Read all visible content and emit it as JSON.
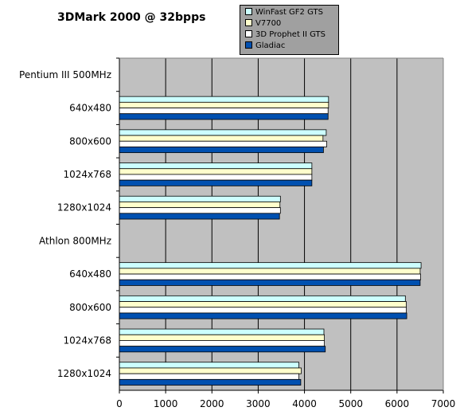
{
  "chart_data": {
    "type": "bar",
    "orientation": "horizontal",
    "title": "3DMark 2000 @ 32bpps",
    "categories": [
      "Pentium III 500MHz",
      "640x480",
      "800x600",
      "1024x768",
      "1280x1024",
      "Athlon 800MHz",
      "640x480",
      "800x600",
      "1024x768",
      "1280x1024"
    ],
    "series": [
      {
        "name": "WinFast GF2 GTS",
        "color": "#ccffff",
        "values": [
          null,
          4520,
          4470,
          4160,
          3480,
          null,
          6520,
          6180,
          4420,
          3880
        ]
      },
      {
        "name": "V7700",
        "color": "#ffffcc",
        "values": [
          null,
          4520,
          4400,
          4160,
          3470,
          null,
          6500,
          6200,
          4430,
          3930
        ]
      },
      {
        "name": "3D Prophet II GTS",
        "color": "#ffffff",
        "values": [
          null,
          4510,
          4480,
          4160,
          3480,
          null,
          6510,
          6200,
          4430,
          3880
        ]
      },
      {
        "name": "Gladiac",
        "color": "#0050b0",
        "values": [
          null,
          4510,
          4410,
          4160,
          3460,
          null,
          6500,
          6210,
          4450,
          3920
        ]
      }
    ],
    "xlim": [
      0,
      7000
    ],
    "xticks": [
      0,
      1000,
      2000,
      3000,
      4000,
      5000,
      6000,
      7000
    ],
    "xlabel": "",
    "ylabel": "",
    "grid": true,
    "plot_background": "#c0c0c0",
    "legend_position": "top-right"
  }
}
